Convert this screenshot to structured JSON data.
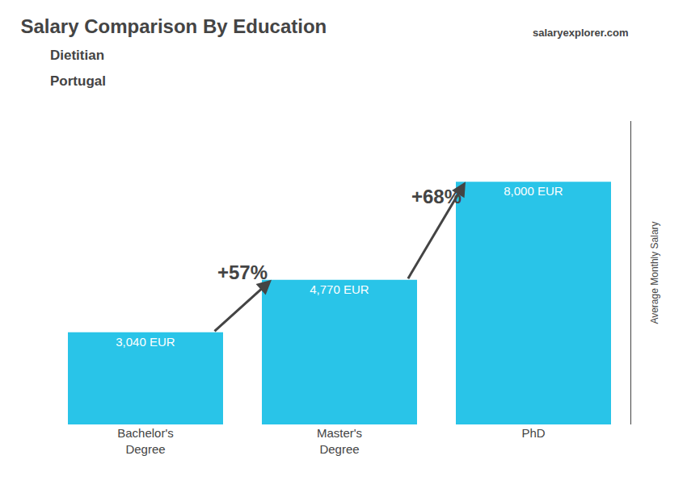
{
  "chart_data": {
    "type": "bar",
    "title": "Salary Comparison By Education",
    "subtitle": [
      "Dietitian",
      "Portugal"
    ],
    "ylabel": "Average Monthly Salary",
    "categories": [
      "Bachelor's\nDegree",
      "Master's\nDegree",
      "PhD"
    ],
    "values": [
      3040,
      4770,
      8000
    ],
    "value_labels": [
      "3,040 EUR",
      "4,770 EUR",
      "8,000 EUR"
    ],
    "data_labels": true,
    "color": "#29C4E8",
    "ylim": [
      0,
      10000
    ],
    "tick_labels": "x",
    "grid": false,
    "annotations": [
      "+57%",
      "+68%",
      "salaryexplorer.com"
    ]
  }
}
